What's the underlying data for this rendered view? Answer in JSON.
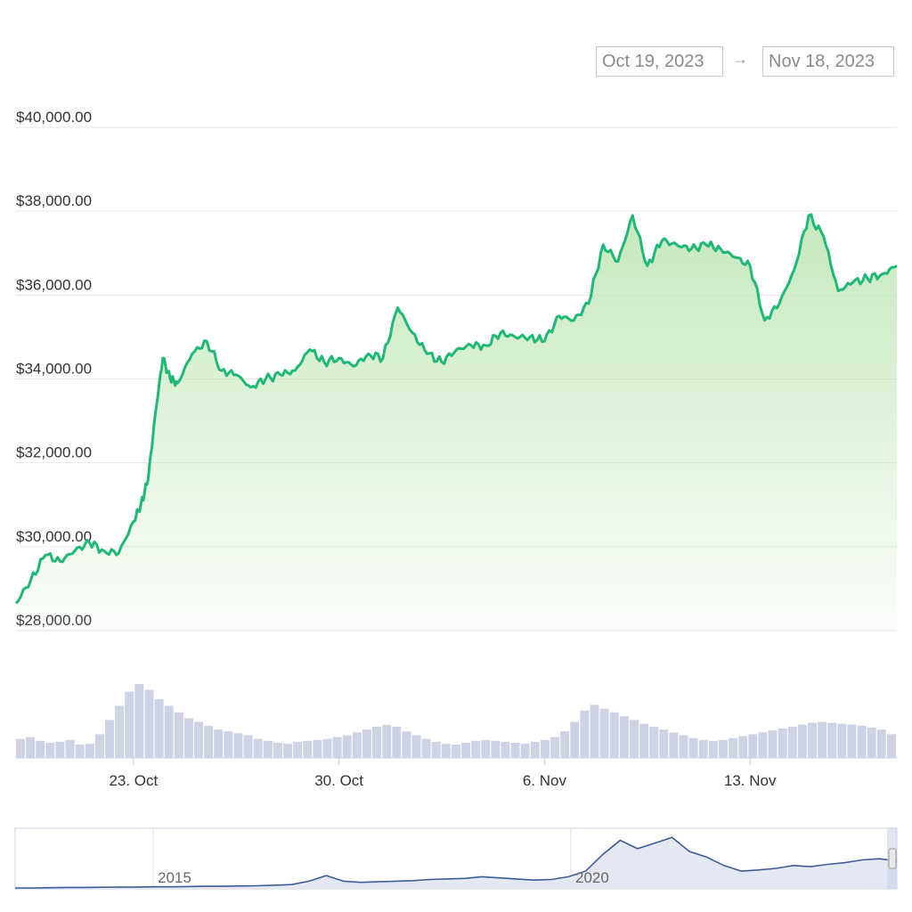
{
  "date_range": {
    "from": "Oct 19, 2023",
    "arrow": "→",
    "to": "Nov 18, 2023"
  },
  "colors": {
    "line": "#1fb877",
    "area_top": "#bfe6b5",
    "volume": "#cdd3e4",
    "navigator_line": "#3e5b9a",
    "grid": "#e6e6e6"
  },
  "chart_data": [
    {
      "type": "area",
      "x_start": "2023-10-19",
      "x_end": "2023-11-18",
      "ylim": [
        28000,
        40000
      ],
      "y_ticks": [
        "$28,000.00",
        "$30,000.00",
        "$32,000.00",
        "$34,000.00",
        "$36,000.00",
        "$38,000.00",
        "$40,000.00"
      ],
      "y_tick_values": [
        28000,
        30000,
        32000,
        34000,
        36000,
        38000,
        40000
      ],
      "x_ticks": [
        "23. Oct",
        "30. Oct",
        "6. Nov",
        "13. Nov"
      ],
      "x_tick_dates": [
        "2023-10-23",
        "2023-10-30",
        "2023-11-06",
        "2023-11-13"
      ],
      "grid": true,
      "series": [
        {
          "x": [
            "2023-10-19",
            "2023-10-19T12:00",
            "2023-10-20",
            "2023-10-20T12:00",
            "2023-10-21",
            "2023-10-21T12:00",
            "2023-10-22",
            "2023-10-22T12:00",
            "2023-10-23",
            "2023-10-23T06:00",
            "2023-10-23T12:00",
            "2023-10-23T18:00",
            "2023-10-24",
            "2023-10-24T06:00",
            "2023-10-24T12:00",
            "2023-10-25",
            "2023-10-25T12:00",
            "2023-10-26",
            "2023-10-26T12:00",
            "2023-10-27",
            "2023-10-27T12:00",
            "2023-10-28",
            "2023-10-28T12:00",
            "2023-10-29",
            "2023-10-29T12:00",
            "2023-10-30",
            "2023-10-30T12:00",
            "2023-10-31",
            "2023-10-31T12:00",
            "2023-11-01",
            "2023-11-01T12:00",
            "2023-11-02",
            "2023-11-02T12:00",
            "2023-11-03",
            "2023-11-03T12:00",
            "2023-11-04",
            "2023-11-04T12:00",
            "2023-11-05",
            "2023-11-05T12:00",
            "2023-11-06",
            "2023-11-06T12:00",
            "2023-11-07",
            "2023-11-07T12:00",
            "2023-11-08",
            "2023-11-08T12:00",
            "2023-11-09",
            "2023-11-09T12:00",
            "2023-11-10",
            "2023-11-10T12:00",
            "2023-11-11",
            "2023-11-11T12:00",
            "2023-11-12",
            "2023-11-12T12:00",
            "2023-11-13",
            "2023-11-13T12:00",
            "2023-11-14",
            "2023-11-14T12:00",
            "2023-11-15",
            "2023-11-15T12:00",
            "2023-11-16",
            "2023-11-16T12:00",
            "2023-11-17",
            "2023-11-17T12:00",
            "2023-11-18"
          ],
          "values": [
            28650,
            29200,
            29800,
            29650,
            29900,
            30100,
            29900,
            29850,
            30600,
            31000,
            31600,
            33200,
            34500,
            34000,
            33900,
            34600,
            34900,
            34200,
            34100,
            33800,
            34000,
            34100,
            34200,
            34700,
            34400,
            34500,
            34300,
            34600,
            34500,
            35700,
            35100,
            34600,
            34400,
            34700,
            34800,
            34800,
            35100,
            35000,
            35000,
            34900,
            35500,
            35400,
            35800,
            37200,
            36800,
            37900,
            36700,
            37300,
            37200,
            37100,
            37200,
            37100,
            36900,
            36700,
            35400,
            35800,
            36600,
            37900,
            37400,
            36100,
            36300,
            36400,
            36500,
            36700
          ]
        }
      ]
    },
    {
      "type": "bar",
      "name": "volume",
      "values": [
        20,
        22,
        18,
        16,
        17,
        19,
        14,
        15,
        25,
        40,
        55,
        70,
        78,
        72,
        62,
        55,
        48,
        42,
        38,
        34,
        30,
        28,
        26,
        24,
        20,
        18,
        16,
        15,
        17,
        18,
        19,
        20,
        22,
        24,
        27,
        30,
        33,
        35,
        33,
        28,
        24,
        20,
        17,
        15,
        14,
        16,
        18,
        19,
        18,
        17,
        16,
        15,
        17,
        19,
        22,
        28,
        38,
        50,
        56,
        52,
        48,
        44,
        40,
        36,
        33,
        30,
        27,
        24,
        21,
        19,
        18,
        19,
        21,
        23,
        25,
        27,
        29,
        31,
        33,
        35,
        37,
        38,
        37,
        36,
        35,
        34,
        32,
        30,
        25
      ]
    },
    {
      "type": "line",
      "name": "navigator",
      "x_ticks": [
        "2015",
        "2020"
      ],
      "values": [
        0,
        0,
        0.005,
        0.01,
        0.01,
        0.012,
        0.015,
        0.015,
        0.02,
        0.02,
        0.025,
        0.03,
        0.03,
        0.035,
        0.04,
        0.05,
        0.06,
        0.12,
        0.22,
        0.12,
        0.1,
        0.11,
        0.12,
        0.13,
        0.15,
        0.16,
        0.17,
        0.2,
        0.18,
        0.16,
        0.14,
        0.15,
        0.2,
        0.3,
        0.6,
        0.85,
        0.7,
        0.8,
        0.9,
        0.65,
        0.55,
        0.4,
        0.3,
        0.32,
        0.35,
        0.4,
        0.38,
        0.42,
        0.45,
        0.5,
        0.52,
        0.48
      ]
    }
  ]
}
